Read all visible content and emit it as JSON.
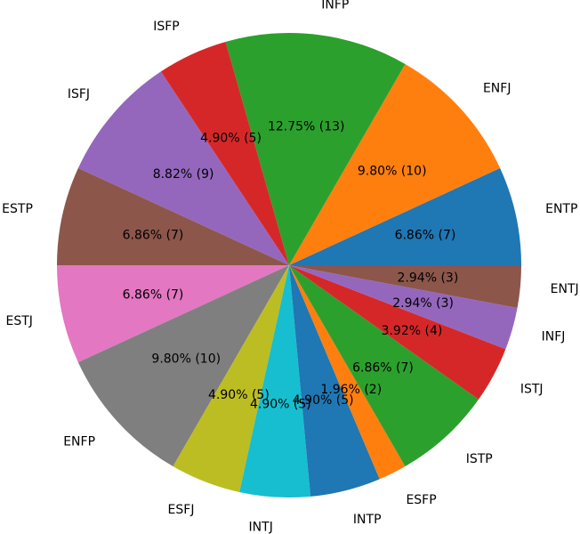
{
  "chart_data": {
    "type": "pie",
    "title": "",
    "categories": [
      "ENTP",
      "ENFJ",
      "INFP",
      "ISFP",
      "ISFJ",
      "ESTP",
      "ESTJ",
      "ENFP",
      "ESFJ",
      "INTJ",
      "INTP",
      "ESFP",
      "ISTP",
      "ISTJ",
      "INFJ",
      "ENTJ"
    ],
    "values": [
      7,
      10,
      13,
      5,
      9,
      7,
      7,
      10,
      5,
      5,
      5,
      2,
      7,
      4,
      3,
      3
    ],
    "value_labels": [
      "6.86% (7)",
      "9.80% (10)",
      "12.75% (13)",
      "4.90% (5)",
      "8.82% (9)",
      "6.86% (7)",
      "6.86% (7)",
      "9.80% (10)",
      "4.90% (5)",
      "4.90% (5)",
      "4.90% (5)",
      "1.96% (2)",
      "6.86% (7)",
      "3.92% (4)",
      "2.94% (3)",
      "2.94% (3)"
    ],
    "colors": [
      "#1f77b4",
      "#ff7f0e",
      "#2ca02c",
      "#d62728",
      "#9467bd",
      "#8c564b",
      "#e377c2",
      "#7f7f7f",
      "#bcbd22",
      "#17becf",
      "#1f77b4",
      "#ff7f0e",
      "#2ca02c",
      "#d62728",
      "#9467bd",
      "#8c564b"
    ],
    "start_angle_deg": 0,
    "direction": "counterclockwise",
    "legend": "none"
  }
}
